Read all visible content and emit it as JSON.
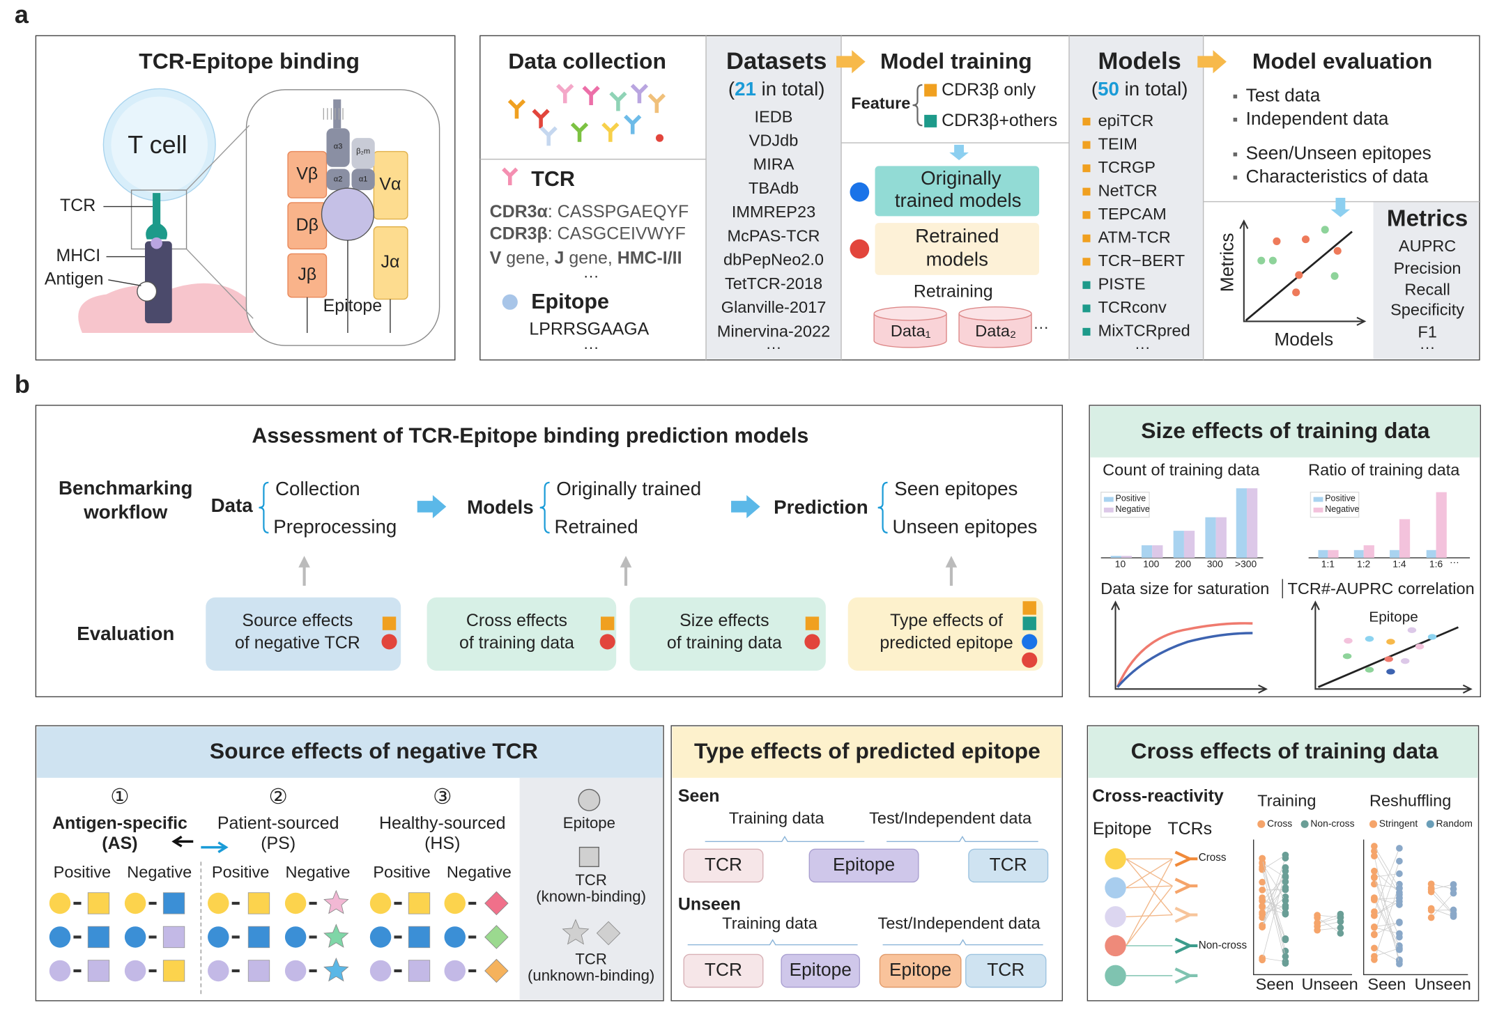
{
  "panel_labels": [
    "a",
    "b"
  ],
  "binding": {
    "title": "TCR-Epitope binding",
    "t_cell": "T cell",
    "tcr": "TCR",
    "mhci": "MHCI",
    "antigen": "Antigen",
    "chains": [
      "Vβ",
      "Dβ",
      "Jβ",
      "Vα",
      "Jα"
    ],
    "small": [
      "α3",
      "β₂m",
      "α2",
      "α1"
    ],
    "epitope": "Epitope"
  },
  "data_collection": {
    "title": "Data collection",
    "tcr": "TCR",
    "cdr3a": [
      "CDR3α",
      ": CASSPGAEQYF"
    ],
    "cdr3b": [
      "CDR3β",
      ": CASGCEIVWYF"
    ],
    "genes": [
      "V",
      " gene, ",
      "J",
      " gene, ",
      "HMC-I/II"
    ],
    "more": "···",
    "epitope": "Epitope",
    "epitope_seq": "LPRRSGAAGA"
  },
  "datasets": {
    "title": "Datasets",
    "count": [
      "(",
      "21",
      " in total)"
    ],
    "items": [
      "IEDB",
      "VDJdb",
      "MIRA",
      "TBAdb",
      "IMMREP23",
      "McPAS-TCR",
      "dbPepNeo2.0",
      "TetTCR-2018",
      "Glanville-2017",
      "Minervina-2022"
    ],
    "more": "···"
  },
  "model_training": {
    "title": "Model training",
    "feature": "Feature",
    "options": [
      "CDR3β only",
      "CDR3β+others"
    ],
    "originally": [
      "Originally",
      "trained models"
    ],
    "retrained": [
      "Retrained",
      "models"
    ],
    "retraining": "Retraining",
    "data": [
      "Data₁",
      "Data₂"
    ],
    "more": "···"
  },
  "models": {
    "title": "Models",
    "count": [
      "(",
      "50",
      " in total)"
    ],
    "items": [
      "epiTCR",
      "TEIM",
      "TCRGP",
      "NetTCR",
      "TEPCAM",
      "ATM-TCR",
      "TCR−BERT",
      "PISTE",
      "TCRconv",
      "MixTCRpred"
    ],
    "more": "···"
  },
  "model_evaluation": {
    "title": "Model evaluation",
    "items": [
      "Test data",
      "Independent data",
      "Seen/Unseen epitopes",
      "Characteristics of data"
    ],
    "y_axis": "Metrics",
    "x_axis": "Models"
  },
  "metrics": {
    "title": "Metrics",
    "items": [
      "AUPRC",
      "Precision",
      "Recall",
      "Specificity",
      "F1"
    ],
    "more": "···"
  },
  "assessment": {
    "title": "Assessment of TCR-Epitope binding prediction models",
    "workflow": [
      "Benchmarking",
      "workflow"
    ],
    "data": "Data",
    "data_items": [
      "Collection",
      "Preprocessing"
    ],
    "models": "Models",
    "model_items": [
      "Originally trained",
      "Retrained"
    ],
    "prediction": "Prediction",
    "prediction_items": [
      "Seen epitopes",
      "Unseen epitopes"
    ],
    "evaluation": "Evaluation",
    "boxes": [
      [
        "Source effects",
        "of negative TCR"
      ],
      [
        "Cross effects",
        "of training data"
      ],
      [
        "Size effects",
        "of training data"
      ],
      [
        "Type effects of",
        "predicted epitope"
      ]
    ]
  },
  "size_effects": {
    "title": "Size effects of training data",
    "count": "Count of training data",
    "ratio": "Ratio of training data",
    "legend": [
      "Positive",
      "Negative"
    ],
    "count_ticks": [
      "10",
      "100",
      "200",
      "300",
      ">300"
    ],
    "ratio_ticks": [
      "1:1",
      "1:2",
      "1:4",
      "1:6"
    ],
    "ratio_more": "···",
    "saturation": "Data size for saturation",
    "correlation": "TCR#-AUPRC correlation",
    "epitope": "Epitope"
  },
  "source_effects": {
    "title": "Source effects of negative TCR",
    "groups": [
      {
        "num": "①",
        "name": "Antigen-specific",
        "abbr": "(AS)"
      },
      {
        "num": "②",
        "name": "Patient-sourced",
        "abbr": "(PS)"
      },
      {
        "num": "③",
        "name": "Healthy-sourced",
        "abbr": "(HS)"
      }
    ],
    "positive": "Positive",
    "negative": "Negative",
    "legend_epitope": "Epitope",
    "legend_known": [
      "TCR",
      "(known-binding)"
    ],
    "legend_unknown": [
      "TCR",
      "(unknown-binding)"
    ]
  },
  "type_effects": {
    "title": "Type effects of predicted epitope",
    "seen": "Seen",
    "unseen": "Unseen",
    "training": "Training data",
    "test": "Test/Independent data",
    "tcr": "TCR",
    "epitope": "Epitope"
  },
  "cross_effects": {
    "title": "Cross effects of training data",
    "cross_reactivity": "Cross-reactivity",
    "epitope": "Epitope",
    "tcrs": "TCRs",
    "cross": "Cross",
    "non_cross": "Non-cross",
    "training": "Training",
    "reshuffling": "Reshuffling",
    "train_legend": [
      "Cross",
      "Non-cross"
    ],
    "reshuffle_legend": [
      "Stringent",
      "Random"
    ],
    "seen": "Seen",
    "unseen": "Unseen"
  }
}
